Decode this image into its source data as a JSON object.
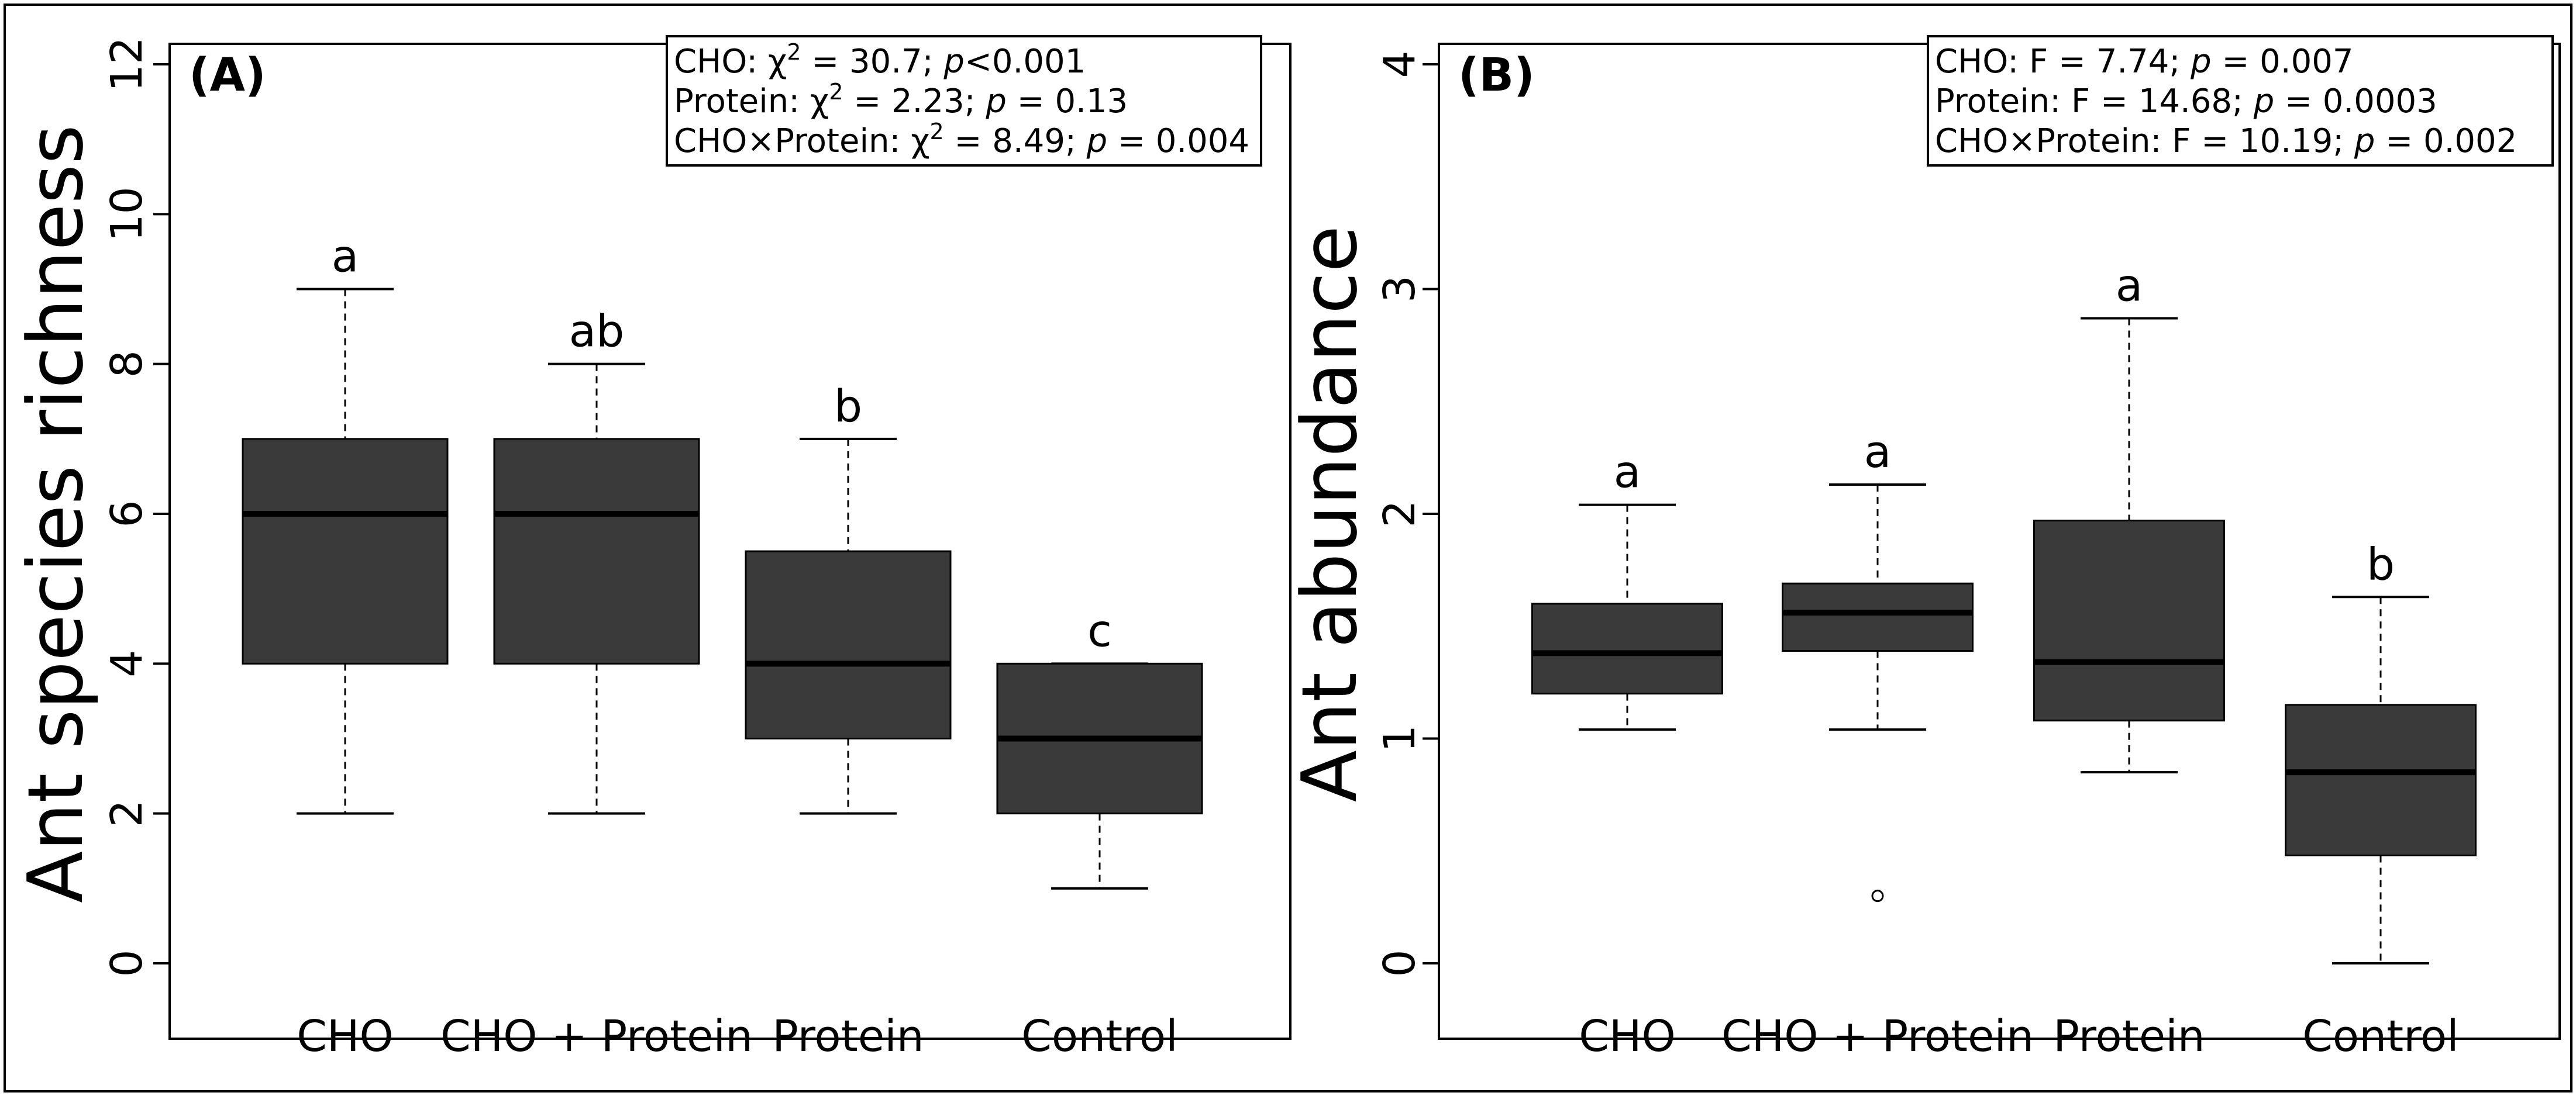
{
  "chart_data": [
    {
      "panel": "(A)",
      "type": "box",
      "ylabel": "Ant species richness",
      "xlabel": "",
      "ylim": [
        0,
        12
      ],
      "yticks": [
        0,
        2,
        4,
        6,
        8,
        10,
        12
      ],
      "categories": [
        "CHO",
        "CHO + Protein",
        "Protein",
        "Control"
      ],
      "boxes": [
        {
          "whisker_low": 2,
          "q1": 4,
          "median": 6,
          "q3": 7,
          "whisker_high": 9,
          "outliers": [],
          "letter": "a"
        },
        {
          "whisker_low": 2,
          "q1": 4,
          "median": 6,
          "q3": 7,
          "whisker_high": 8,
          "outliers": [],
          "letter": "ab"
        },
        {
          "whisker_low": 2,
          "q1": 3,
          "median": 4,
          "q3": 5.5,
          "whisker_high": 7,
          "outliers": [],
          "letter": "b"
        },
        {
          "whisker_low": 1,
          "q1": 2,
          "median": 3,
          "q3": 4,
          "whisker_high": 4,
          "outliers": [],
          "letter": "c"
        }
      ],
      "stats": [
        {
          "prefix": "CHO: ",
          "stat": "χ",
          "sup": "2",
          "value": " = 30.7; ",
          "p": "p",
          "pval": "<0.001"
        },
        {
          "prefix": "Protein: ",
          "stat": "χ",
          "sup": "2",
          "value": " = 2.23; ",
          "p": "p",
          "pval": " = 0.13"
        },
        {
          "prefix": "CHO×Protein: ",
          "stat": "χ",
          "sup": "2",
          "value": " = 8.49; ",
          "p": "p",
          "pval": " = 0.004"
        }
      ]
    },
    {
      "panel": "(B)",
      "type": "box",
      "ylabel": "Ant abundance",
      "xlabel": "",
      "ylim": [
        0,
        4
      ],
      "yticks": [
        0,
        1,
        2,
        3,
        4
      ],
      "categories": [
        "CHO",
        "CHO + Protein",
        "Protein",
        "Control"
      ],
      "boxes": [
        {
          "whisker_low": 1.04,
          "q1": 1.2,
          "median": 1.38,
          "q3": 1.6,
          "whisker_high": 2.04,
          "outliers": [],
          "letter": "a"
        },
        {
          "whisker_low": 1.04,
          "q1": 1.39,
          "median": 1.56,
          "q3": 1.69,
          "whisker_high": 2.13,
          "outliers": [
            0.3
          ],
          "letter": "a"
        },
        {
          "whisker_low": 0.85,
          "q1": 1.08,
          "median": 1.34,
          "q3": 1.97,
          "whisker_high": 2.87,
          "outliers": [],
          "letter": "a"
        },
        {
          "whisker_low": 0.0,
          "q1": 0.48,
          "median": 0.85,
          "q3": 1.15,
          "whisker_high": 1.63,
          "outliers": [],
          "letter": "b"
        }
      ],
      "stats": [
        {
          "prefix": "CHO: ",
          "stat": "F",
          "sup": "",
          "value": " = 7.74; ",
          "p": "p",
          "pval": " = 0.007"
        },
        {
          "prefix": "Protein: ",
          "stat": "F",
          "sup": "",
          "value": " = 14.68; ",
          "p": "p",
          "pval": " = 0.0003"
        },
        {
          "prefix": "CHO×Protein: ",
          "stat": "F",
          "sup": "",
          "value": " = 10.19; ",
          "p": "p",
          "pval": " = 0.002"
        }
      ]
    }
  ],
  "colors": {
    "box_fill": "#3a3a3a",
    "median": "#000000",
    "axis": "#000000"
  }
}
